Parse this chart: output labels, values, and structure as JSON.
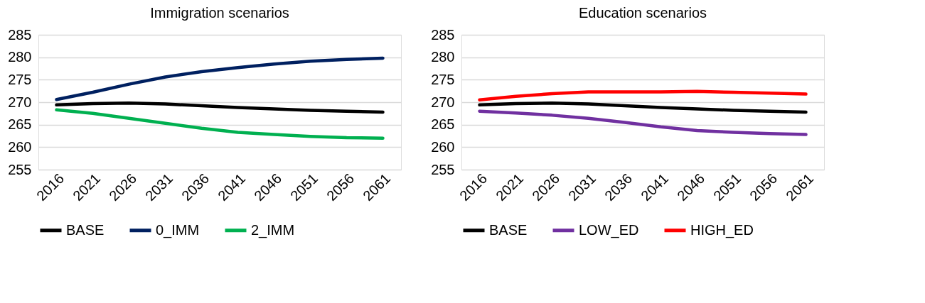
{
  "chart_data": [
    {
      "type": "line",
      "title": "Immigration scenarios",
      "categories": [
        "2016",
        "2021",
        "2026",
        "2031",
        "2036",
        "2041",
        "2046",
        "2051",
        "2056",
        "2061"
      ],
      "ylim": [
        255,
        285
      ],
      "yticks": [
        255,
        260,
        265,
        270,
        275,
        280,
        285
      ],
      "grid": "y",
      "legend": "bottom",
      "marker": "none",
      "line_style": "solid",
      "series": [
        {
          "name": "BASE",
          "color": "#000000",
          "values": [
            269.4,
            269.7,
            269.8,
            269.6,
            269.2,
            268.8,
            268.5,
            268.2,
            268.0,
            267.8
          ]
        },
        {
          "name": "0_IMM",
          "color": "#002060",
          "values": [
            270.6,
            272.2,
            274.0,
            275.6,
            276.8,
            277.7,
            278.5,
            279.1,
            279.5,
            279.8
          ]
        },
        {
          "name": "2_IMM",
          "color": "#00b050",
          "values": [
            268.3,
            267.5,
            266.4,
            265.3,
            264.2,
            263.3,
            262.8,
            262.4,
            262.1,
            262.0
          ]
        }
      ]
    },
    {
      "type": "line",
      "title": "Education scenarios",
      "categories": [
        "2016",
        "2021",
        "2026",
        "2031",
        "2036",
        "2041",
        "2046",
        "2051",
        "2056",
        "2061"
      ],
      "ylim": [
        255,
        285
      ],
      "yticks": [
        255,
        260,
        265,
        270,
        275,
        280,
        285
      ],
      "grid": "y",
      "legend": "bottom",
      "marker": "none",
      "line_style": "solid",
      "series": [
        {
          "name": "BASE",
          "color": "#000000",
          "values": [
            269.4,
            269.7,
            269.8,
            269.6,
            269.2,
            268.8,
            268.5,
            268.2,
            268.0,
            267.8
          ]
        },
        {
          "name": "LOW_ED",
          "color": "#7030a0",
          "values": [
            268.0,
            267.6,
            267.1,
            266.4,
            265.5,
            264.5,
            263.7,
            263.3,
            263.0,
            262.8
          ]
        },
        {
          "name": "HIGH_ED",
          "color": "#ff0000",
          "values": [
            270.5,
            271.3,
            271.9,
            272.3,
            272.3,
            272.3,
            272.4,
            272.2,
            272.0,
            271.8
          ]
        }
      ]
    }
  ]
}
